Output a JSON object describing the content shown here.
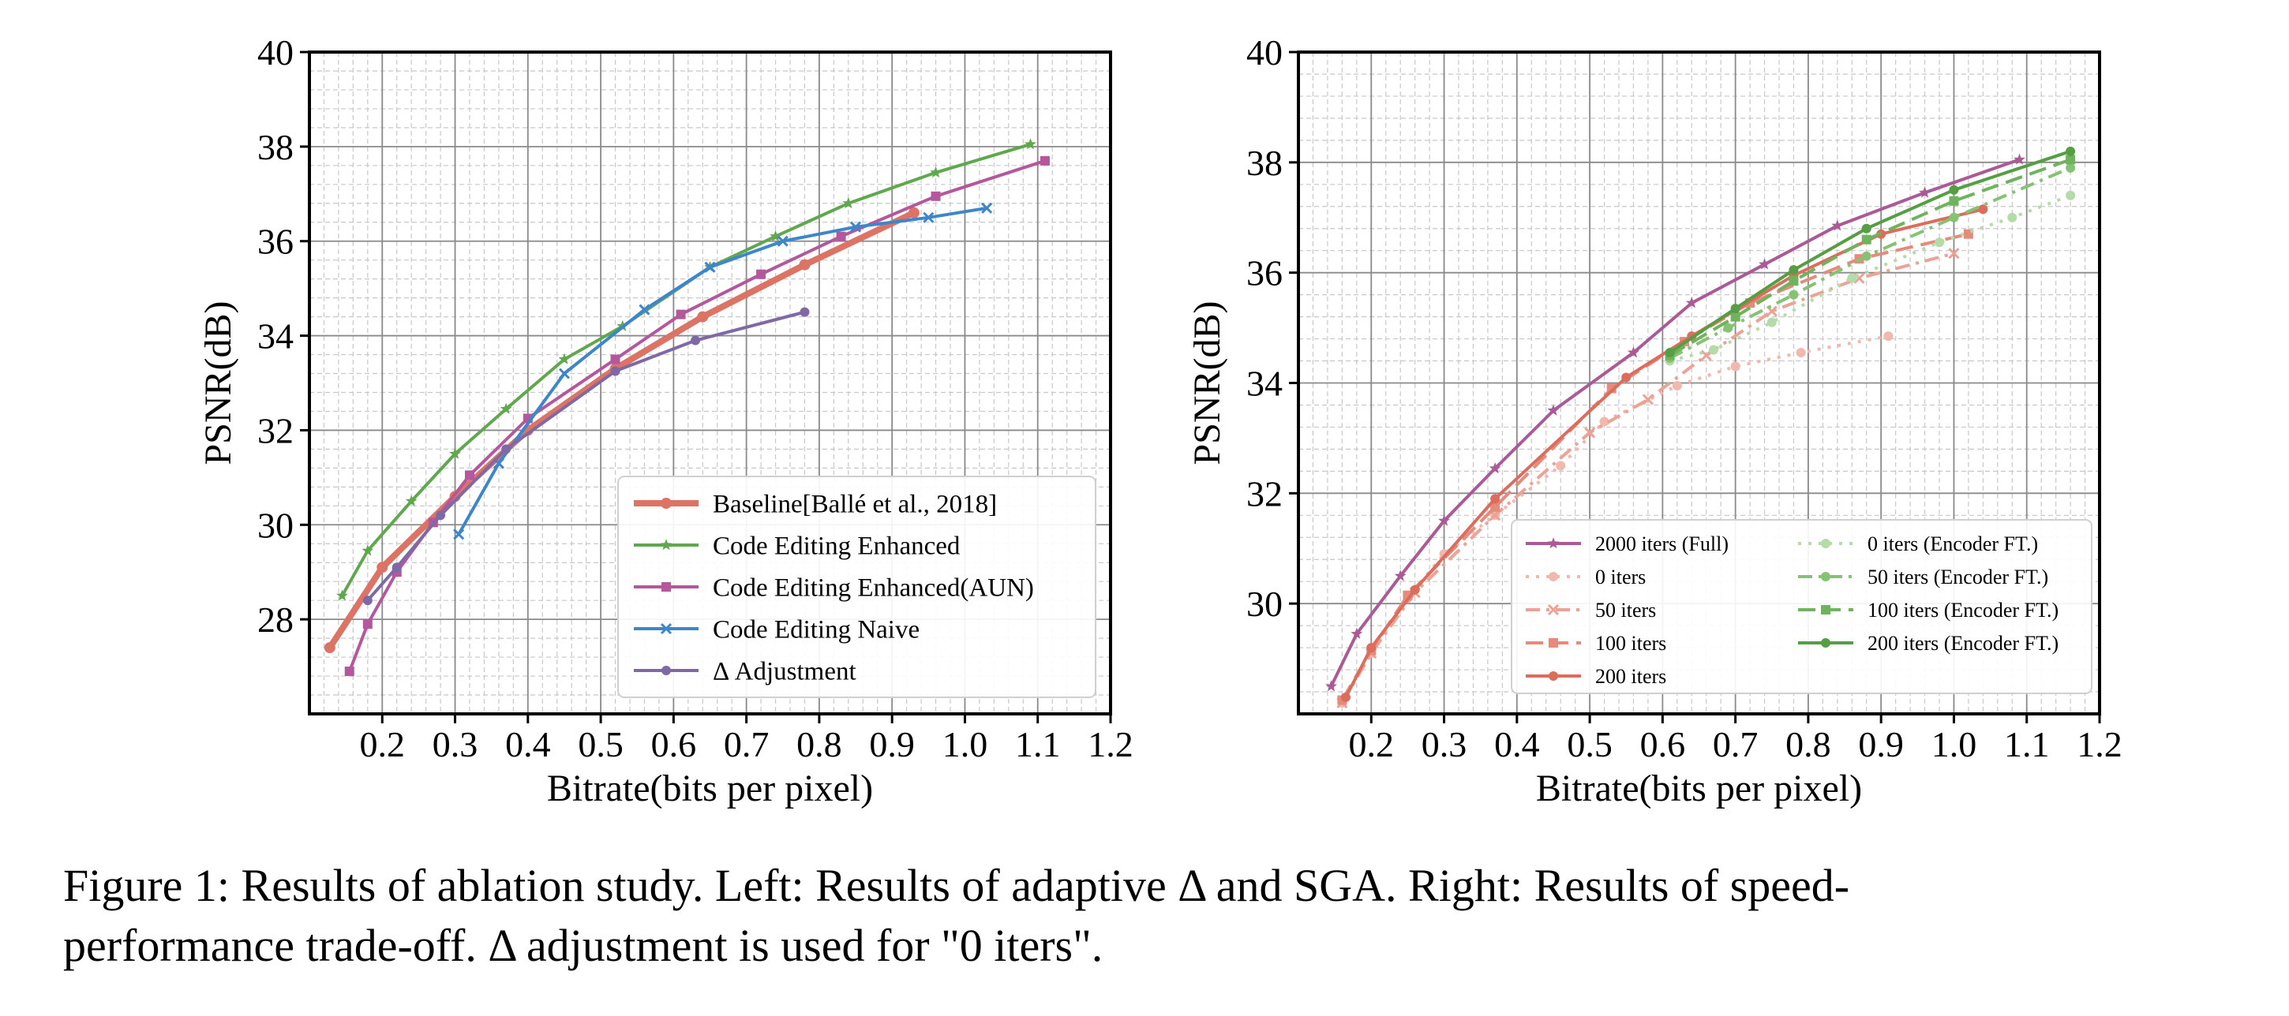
{
  "caption": {
    "line1": "Figure 1: Results of ablation study. Left: Results of adaptive Δ and SGA. Right: Results of speed-",
    "line2": "performance trade-off. Δ adjustment is used for \"0 iters\"."
  },
  "chart_data": [
    {
      "type": "line",
      "xlabel": "Bitrate(bits per pixel)",
      "ylabel": "PSNR(dB)",
      "xlim": [
        0.1,
        1.2
      ],
      "ylim": [
        26.0,
        40.0
      ],
      "xticks": [
        "0.2",
        "0.3",
        "0.4",
        "0.5",
        "0.6",
        "0.7",
        "0.8",
        "0.9",
        "1.0",
        "1.1",
        "1.2"
      ],
      "yticks": [
        "28",
        "30",
        "32",
        "34",
        "36",
        "38",
        "40"
      ],
      "grid": true,
      "legend_position": "lower-right",
      "series": [
        {
          "name": "Baseline[Ballé et al., 2018]",
          "color": "#dd7364",
          "style": "solid",
          "marker": "dot",
          "bold": true,
          "points": [
            [
              0.128,
              27.4
            ],
            [
              0.2,
              29.1
            ],
            [
              0.3,
              30.6
            ],
            [
              0.4,
              32.0
            ],
            [
              0.52,
              33.3
            ],
            [
              0.64,
              34.4
            ],
            [
              0.78,
              35.5
            ],
            [
              0.93,
              36.6
            ]
          ]
        },
        {
          "name": "Code Editing Enhanced",
          "color": "#5fa84e",
          "style": "solid",
          "marker": "star",
          "points": [
            [
              0.145,
              28.5
            ],
            [
              0.18,
              29.45
            ],
            [
              0.24,
              30.5
            ],
            [
              0.3,
              31.5
            ],
            [
              0.37,
              32.45
            ],
            [
              0.45,
              33.5
            ],
            [
              0.53,
              34.2
            ],
            [
              0.65,
              35.45
            ],
            [
              0.74,
              36.1
            ],
            [
              0.84,
              36.8
            ],
            [
              0.96,
              37.45
            ],
            [
              1.09,
              38.05
            ]
          ]
        },
        {
          "name": "Code Editing Enhanced(AUN)",
          "color": "#b4579c",
          "style": "solid",
          "marker": "square",
          "points": [
            [
              0.155,
              26.9
            ],
            [
              0.18,
              27.9
            ],
            [
              0.22,
              29.0
            ],
            [
              0.27,
              30.05
            ],
            [
              0.32,
              31.05
            ],
            [
              0.4,
              32.25
            ],
            [
              0.52,
              33.5
            ],
            [
              0.61,
              34.45
            ],
            [
              0.72,
              35.3
            ],
            [
              0.83,
              36.1
            ],
            [
              0.96,
              36.95
            ],
            [
              1.11,
              37.7
            ]
          ]
        },
        {
          "name": "Code Editing Naive",
          "color": "#3d86cc",
          "style": "solid",
          "marker": "cross",
          "points": [
            [
              0.305,
              29.8
            ],
            [
              0.36,
              31.3
            ],
            [
              0.45,
              33.2
            ],
            [
              0.56,
              34.55
            ],
            [
              0.65,
              35.45
            ],
            [
              0.75,
              36.0
            ],
            [
              0.85,
              36.3
            ],
            [
              0.95,
              36.5
            ],
            [
              1.03,
              36.7
            ]
          ]
        },
        {
          "name": "Δ Adjustment",
          "color": "#7e69a6",
          "style": "solid",
          "marker": "dot",
          "points": [
            [
              0.18,
              28.4
            ],
            [
              0.22,
              29.1
            ],
            [
              0.28,
              30.2
            ],
            [
              0.37,
              31.6
            ],
            [
              0.52,
              33.25
            ],
            [
              0.63,
              33.9
            ],
            [
              0.78,
              34.5
            ]
          ]
        }
      ]
    },
    {
      "type": "line",
      "xlabel": "Bitrate(bits per pixel)",
      "ylabel": "PSNR(dB)",
      "xlim": [
        0.1,
        1.2
      ],
      "ylim": [
        28.0,
        40.0
      ],
      "xticks": [
        "0.2",
        "0.3",
        "0.4",
        "0.5",
        "0.6",
        "0.7",
        "0.8",
        "0.9",
        "1.0",
        "1.1",
        "1.2"
      ],
      "yticks": [
        "30",
        "32",
        "34",
        "36",
        "38",
        "40"
      ],
      "grid": true,
      "legend_position": "lower-right",
      "series": [
        {
          "name": "2000 iters (Full)",
          "color": "#ab5a97",
          "style": "solid",
          "marker": "star",
          "points": [
            [
              0.145,
              28.5
            ],
            [
              0.18,
              29.45
            ],
            [
              0.24,
              30.5
            ],
            [
              0.3,
              31.5
            ],
            [
              0.37,
              32.45
            ],
            [
              0.45,
              33.5
            ],
            [
              0.56,
              34.55
            ],
            [
              0.64,
              35.45
            ],
            [
              0.74,
              36.15
            ],
            [
              0.84,
              36.85
            ],
            [
              0.96,
              37.45
            ],
            [
              1.09,
              38.05
            ]
          ]
        },
        {
          "name": "0 iters",
          "color": "#f2b8ad",
          "style": "dotted",
          "marker": "dot",
          "points": [
            [
              0.16,
              28.2
            ],
            [
              0.2,
              29.1
            ],
            [
              0.25,
              30.1
            ],
            [
              0.3,
              30.9
            ],
            [
              0.37,
              31.6
            ],
            [
              0.46,
              32.5
            ],
            [
              0.52,
              33.3
            ],
            [
              0.62,
              33.95
            ],
            [
              0.7,
              34.3
            ],
            [
              0.79,
              34.55
            ],
            [
              0.91,
              34.85
            ]
          ]
        },
        {
          "name": "50 iters",
          "color": "#eca294",
          "style": "dashdot",
          "marker": "cross",
          "points": [
            [
              0.16,
              28.2
            ],
            [
              0.2,
              29.1
            ],
            [
              0.26,
              30.2
            ],
            [
              0.37,
              31.6
            ],
            [
              0.5,
              33.1
            ],
            [
              0.58,
              33.7
            ],
            [
              0.66,
              34.5
            ],
            [
              0.75,
              35.3
            ],
            [
              0.87,
              35.9
            ],
            [
              1.0,
              36.35
            ]
          ]
        },
        {
          "name": "100 iters",
          "color": "#e58b7c",
          "style": "dashed",
          "marker": "square",
          "points": [
            [
              0.16,
              28.25
            ],
            [
              0.2,
              29.15
            ],
            [
              0.25,
              30.15
            ],
            [
              0.37,
              31.75
            ],
            [
              0.53,
              33.9
            ],
            [
              0.63,
              34.75
            ],
            [
              0.72,
              35.45
            ],
            [
              0.87,
              36.25
            ],
            [
              1.02,
              36.7
            ]
          ]
        },
        {
          "name": "200 iters",
          "color": "#dc6d5d",
          "style": "solid",
          "marker": "dot",
          "points": [
            [
              0.165,
              28.3
            ],
            [
              0.2,
              29.2
            ],
            [
              0.26,
              30.25
            ],
            [
              0.37,
              31.9
            ],
            [
              0.55,
              34.1
            ],
            [
              0.64,
              34.85
            ],
            [
              0.78,
              35.95
            ],
            [
              0.9,
              36.7
            ],
            [
              1.04,
              37.15
            ]
          ]
        },
        {
          "name": "0 iters (Encoder FT.)",
          "color": "#b5dba8",
          "style": "dotted",
          "marker": "dot",
          "points": [
            [
              0.61,
              34.4
            ],
            [
              0.67,
              34.6
            ],
            [
              0.75,
              35.1
            ],
            [
              0.86,
              35.9
            ],
            [
              0.98,
              36.55
            ],
            [
              1.08,
              37.0
            ],
            [
              1.16,
              37.4
            ]
          ]
        },
        {
          "name": "50 iters (Encoder FT.)",
          "color": "#86c274",
          "style": "dashdot",
          "marker": "dot",
          "points": [
            [
              0.61,
              34.45
            ],
            [
              0.69,
              35.0
            ],
            [
              0.78,
              35.6
            ],
            [
              0.88,
              36.3
            ],
            [
              1.0,
              37.0
            ],
            [
              1.16,
              37.9
            ]
          ]
        },
        {
          "name": "100 iters (Encoder FT.)",
          "color": "#6fb35d",
          "style": "dashed",
          "marker": "square",
          "points": [
            [
              0.61,
              34.5
            ],
            [
              0.7,
              35.2
            ],
            [
              0.78,
              35.85
            ],
            [
              0.88,
              36.6
            ],
            [
              1.0,
              37.3
            ],
            [
              1.16,
              38.05
            ]
          ]
        },
        {
          "name": "200 iters (Encoder FT.)",
          "color": "#559e43",
          "style": "solid",
          "marker": "dot",
          "points": [
            [
              0.61,
              34.55
            ],
            [
              0.7,
              35.35
            ],
            [
              0.78,
              36.05
            ],
            [
              0.88,
              36.8
            ],
            [
              1.0,
              37.5
            ],
            [
              1.16,
              38.2
            ]
          ]
        }
      ]
    }
  ]
}
